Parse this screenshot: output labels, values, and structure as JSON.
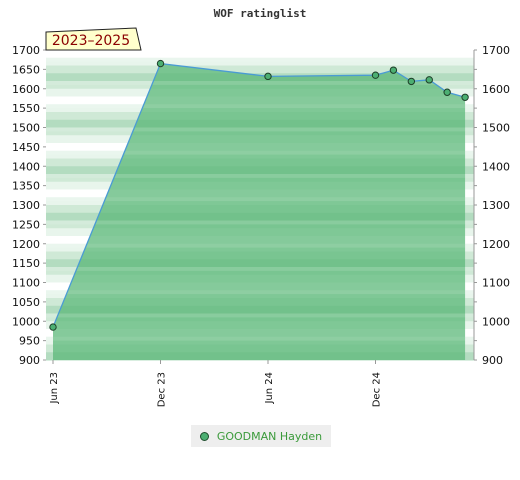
{
  "chart_data": {
    "type": "area",
    "title": "WOF ratinglist",
    "badge": "2023–2025",
    "xlabel": "",
    "ylabel": "",
    "ylim": [
      900,
      1700
    ],
    "yticks": [
      900,
      950,
      1000,
      1050,
      1100,
      1150,
      1200,
      1250,
      1300,
      1350,
      1400,
      1450,
      1500,
      1550,
      1600,
      1650,
      1700
    ],
    "yticks_right": [
      900,
      1000,
      1100,
      1200,
      1300,
      1400,
      1500,
      1600,
      1700
    ],
    "x_tick_labels": [
      "Jun 23",
      "Dec 23",
      "Jun 24",
      "Dec 24"
    ],
    "x_tick_positions": [
      0,
      6,
      12,
      18
    ],
    "xlim": [
      0,
      23.1
    ],
    "series": [
      {
        "name": "GOODMAN Hayden",
        "color": "#4a9bd4",
        "fill": "#5cb87a",
        "x": [
          0,
          6,
          12,
          18,
          19,
          20,
          21,
          22,
          23
        ],
        "values": [
          985,
          1665,
          1632,
          1635,
          1648,
          1619,
          1623,
          1591,
          1578
        ]
      }
    ],
    "legend": "bottom",
    "grid": false
  }
}
